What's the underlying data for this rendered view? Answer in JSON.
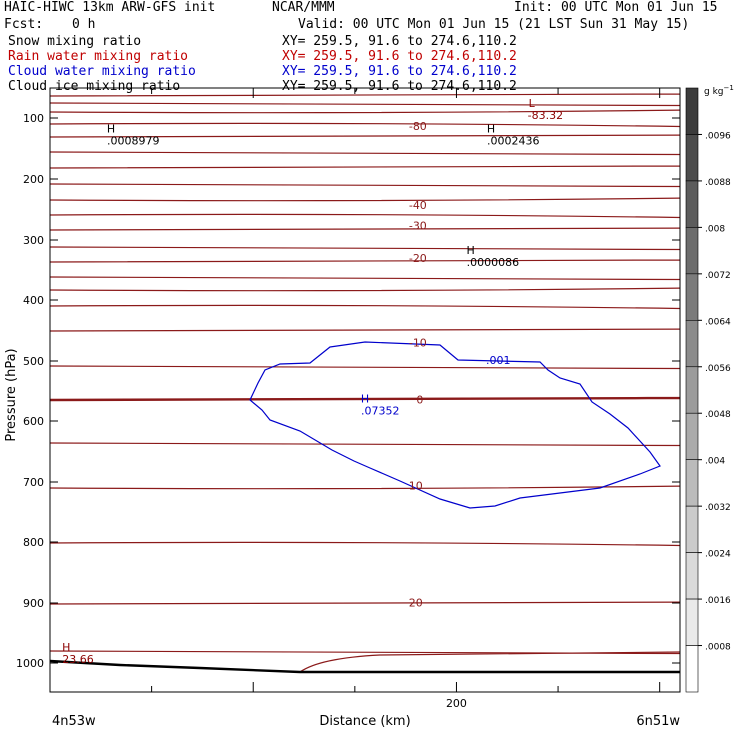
{
  "header": {
    "left_title": "HAIC-HIWC 13km ARW-GFS init",
    "org": "NCAR/MMM",
    "init": "Init: 00 UTC Mon 01 Jun 15",
    "fcst_label": "Fcst:",
    "fcst_value": "0 h",
    "valid": "Valid: 00 UTC Mon 01 Jun 15 (21 LST Sun 31 May 15)",
    "fields": [
      {
        "name": "Snow mixing ratio",
        "xy": "XY= 259.5, 91.6 to 274.6,110.2",
        "color": "#000000"
      },
      {
        "name": "Rain water mixing ratio",
        "xy": "XY= 259.5, 91.6 to 274.6,110.2",
        "color": "#c00000"
      },
      {
        "name": "Cloud water mixing ratio",
        "xy": "XY= 259.5, 91.6 to 274.6,110.2",
        "color": "#0000cc"
      },
      {
        "name": "Cloud ice mixing ratio",
        "xy": "XY= 259.5, 91.6 to 274.6,110.2",
        "color": "#000000"
      }
    ]
  },
  "chart_data": {
    "type": "cross-section",
    "xlabel": "Distance (km)",
    "ylabel": "Pressure (hPa)",
    "xlim": [
      0,
      310
    ],
    "ylim": [
      1050,
      70
    ],
    "x_ticks": [
      200
    ],
    "y_ticks": [
      100,
      200,
      300,
      400,
      500,
      600,
      700,
      800,
      900,
      1000
    ],
    "x_start_label": "4n53w",
    "x_end_label": "6n51w",
    "colorbar": {
      "unit": "g kg",
      "unit_sup": "−1",
      "labels": [
        ".0096",
        ".0088",
        ".008",
        ".0072",
        ".0064",
        ".0056",
        ".0048",
        ".004",
        ".0032",
        ".0024",
        ".0016",
        ".0008"
      ]
    },
    "temperature_labels": [
      {
        "text": "-80",
        "x": 181,
        "p": 113
      },
      {
        "text": "-40",
        "x": 181,
        "p": 243
      },
      {
        "text": "-30",
        "x": 181,
        "p": 276
      },
      {
        "text": "-20",
        "x": 181,
        "p": 330
      },
      {
        "text": "-10",
        "x": 181,
        "p": 470
      },
      {
        "text": "0",
        "x": 182,
        "p": 564
      },
      {
        "text": "10",
        "x": 180,
        "p": 706
      },
      {
        "text": "20",
        "x": 180,
        "p": 899
      }
    ],
    "extrema": [
      {
        "marker": "L",
        "value": "-83.32",
        "x": 237,
        "p": 92,
        "color": "#8b0000"
      },
      {
        "marker": "H",
        "value": ".0008979",
        "x": 30,
        "p": 129,
        "color": "#000000"
      },
      {
        "marker": "H",
        "value": ".0002436",
        "x": 217,
        "p": 129,
        "color": "#000000"
      },
      {
        "marker": "H",
        "value": ".0000086",
        "x": 207,
        "p": 328,
        "color": "#000000"
      },
      {
        "marker": "H",
        "value": ".07352",
        "x": 155,
        "p": 574,
        "color": "#0000cc"
      },
      {
        "marker": "H",
        "value": "23.66",
        "x": 8,
        "p": 985,
        "color": "#8b0000"
      }
    ],
    "cloud_contour_label": ".001"
  }
}
